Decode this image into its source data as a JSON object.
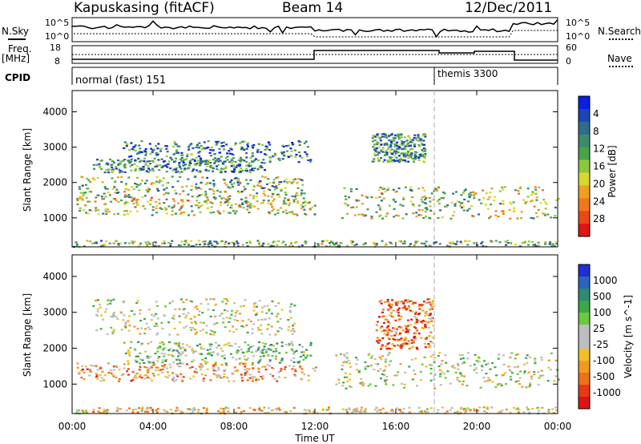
{
  "header": {
    "station": "Kapuskasing (fitACF)",
    "beam": "Beam 14",
    "date": "12/Dec/2011"
  },
  "side_labels": {
    "nsky": "N.Sky",
    "freq": "Freq.",
    "freq_unit": "[MHz]",
    "cpid": "CPID",
    "nsearch": "N.Search",
    "nave": "Nave",
    "pow_10_5": "10^5",
    "pow_10_0": "10^0",
    "freq_top": "18",
    "freq_bot": "8",
    "nave_top": "60",
    "nave_bot": "0"
  },
  "cpid_segments": [
    {
      "label": "normal (fast) 151",
      "start_hour": 0
    },
    {
      "label": "themis 3300",
      "start_hour": 18
    }
  ],
  "chart_data": [
    {
      "type": "heatmap",
      "name": "power",
      "ylabel": "Slant Range [km]",
      "xlabel": "Time UT",
      "x_ticks": [
        "00:00",
        "04:00",
        "08:00",
        "12:00",
        "16:00",
        "20:00",
        "00:00"
      ],
      "xlim_hours": [
        0,
        24
      ],
      "y_ticks": [
        1000,
        2000,
        3000,
        4000
      ],
      "ylim": [
        180,
        4600
      ],
      "colorbar": {
        "label": "Power [dB]",
        "ticks": [
          "4",
          "8",
          "12",
          "16",
          "20",
          "24",
          "28"
        ],
        "colors": [
          "#0a1ee6",
          "#1d44b8",
          "#2f6b8c",
          "#3d8a6a",
          "#4aa34a",
          "#8cc83c",
          "#d8d82a",
          "#f0a020",
          "#f07818",
          "#ea4818",
          "#e01414"
        ]
      },
      "bands": [
        {
          "t0": 0.2,
          "t1": 12.0,
          "r0": 1100,
          "r1": 1600,
          "level": 0.55
        },
        {
          "t0": 0.3,
          "t1": 11.5,
          "r0": 1600,
          "r1": 2200,
          "level": 0.45
        },
        {
          "t0": 1.0,
          "t1": 9.5,
          "r0": 2300,
          "r1": 2700,
          "level": 0.3
        },
        {
          "t0": 2.5,
          "t1": 11.8,
          "r0": 2600,
          "r1": 3200,
          "level": 0.25
        },
        {
          "t0": 13.2,
          "t1": 24.0,
          "r0": 1000,
          "r1": 1900,
          "level": 0.5
        },
        {
          "t0": 14.8,
          "t1": 17.4,
          "r0": 2600,
          "r1": 3400,
          "level": 0.3
        },
        {
          "t0": 0.0,
          "t1": 24.0,
          "r0": 200,
          "r1": 380,
          "level": 0.4
        }
      ]
    },
    {
      "type": "heatmap",
      "name": "velocity",
      "ylabel": "Slant Range [km]",
      "xlabel": "Time UT",
      "x_ticks": [
        "00:00",
        "04:00",
        "08:00",
        "12:00",
        "16:00",
        "20:00",
        "00:00"
      ],
      "xlim_hours": [
        0,
        24
      ],
      "y_ticks": [
        1000,
        2000,
        3000,
        4000
      ],
      "ylim": [
        180,
        4600
      ],
      "colorbar": {
        "label": "Velocity [m s^-1]",
        "ticks": [
          "1000",
          "500",
          "100",
          "25",
          "-25",
          "-100",
          "-500",
          "-1000"
        ],
        "colors": [
          "#1f2fd8",
          "#2a64c0",
          "#2f8a70",
          "#3aa848",
          "#6cc83c",
          "#bebebe",
          "#bebebe",
          "#f0c028",
          "#f09a20",
          "#ee7018",
          "#e83818",
          "#e01414"
        ]
      },
      "bands": [
        {
          "t0": 0.2,
          "t1": 12.0,
          "r0": 1100,
          "r1": 1600,
          "level": -0.35
        },
        {
          "t0": 2.5,
          "t1": 11.8,
          "r0": 1600,
          "r1": 2200,
          "level": 0.15
        },
        {
          "t0": 1.0,
          "t1": 11.0,
          "r0": 2400,
          "r1": 3400,
          "level": 0.0
        },
        {
          "t0": 13.0,
          "t1": 24.0,
          "r0": 900,
          "r1": 1900,
          "level": 0.0
        },
        {
          "t0": 15.0,
          "t1": 17.8,
          "r0": 2000,
          "r1": 3400,
          "level": -0.6
        },
        {
          "t0": 0.0,
          "t1": 24.0,
          "r0": 200,
          "r1": 380,
          "level": -0.2
        }
      ]
    }
  ]
}
